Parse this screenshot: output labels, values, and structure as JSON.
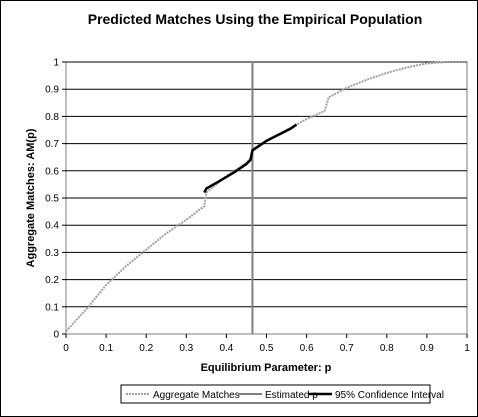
{
  "chart_data": {
    "type": "line",
    "title": "Predicted Matches Using the Empirical Population",
    "xlabel": "Equilibrium Parameter: p",
    "ylabel": "Aggregate Matches: AM(p)",
    "xlim": [
      0,
      1
    ],
    "ylim": [
      0,
      1
    ],
    "x_ticks": [
      "0",
      "0.1",
      "0.2",
      "0.3",
      "0.4",
      "0.5",
      "0.6",
      "0.7",
      "0.8",
      "0.9",
      "1"
    ],
    "y_ticks": [
      "0",
      "0.1",
      "0.2",
      "0.3",
      "0.4",
      "0.5",
      "0.6",
      "0.7",
      "0.8",
      "0.9",
      "1"
    ],
    "grid": "horizontal",
    "legend_position": "bottom",
    "series": [
      {
        "name": "Aggregate Matches",
        "style": "dotted",
        "color": "#a0a0a0",
        "x": [
          0,
          0.05,
          0.1,
          0.15,
          0.2,
          0.25,
          0.3,
          0.345,
          0.35,
          0.4,
          0.45,
          0.46,
          0.465,
          0.5,
          0.55,
          0.6,
          0.645,
          0.655,
          0.7,
          0.75,
          0.8,
          0.85,
          0.9,
          0.95,
          1
        ],
        "y": [
          0.01,
          0.09,
          0.18,
          0.25,
          0.31,
          0.37,
          0.42,
          0.47,
          0.52,
          0.58,
          0.63,
          0.645,
          0.68,
          0.71,
          0.75,
          0.79,
          0.82,
          0.87,
          0.905,
          0.935,
          0.96,
          0.98,
          0.995,
          1.0,
          1.0
        ]
      },
      {
        "name": "Estimated p",
        "style": "vertical-line",
        "color": "#808080",
        "x": 0.465
      },
      {
        "name": "95% Confidence Interval",
        "style": "solid",
        "color": "#000000",
        "x": [
          0.345,
          0.35,
          0.38,
          0.42,
          0.45,
          0.46,
          0.465,
          0.48,
          0.5,
          0.52,
          0.54,
          0.56,
          0.575
        ],
        "y": [
          0.52,
          0.535,
          0.56,
          0.595,
          0.625,
          0.64,
          0.675,
          0.69,
          0.71,
          0.725,
          0.74,
          0.755,
          0.77
        ]
      }
    ]
  }
}
